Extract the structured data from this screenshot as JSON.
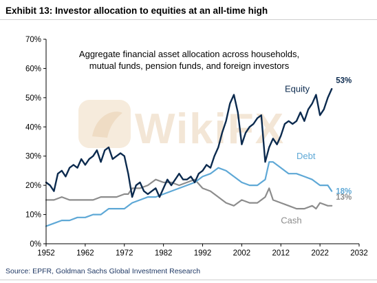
{
  "header": {
    "title": "Exhibit 13: Investor allocation to equities at an all-time high"
  },
  "footer": {
    "source": "Source: EPFR, Goldman Sachs Global Investment Research"
  },
  "watermark": {
    "text": "WikiFX"
  },
  "chart_data": {
    "type": "line",
    "title": "",
    "subtitle_lines": [
      "Aggregate financial asset allocation across households,",
      "mutual funds, pension funds, and foreign investors"
    ],
    "xlabel": "",
    "ylabel": "",
    "xlim": [
      1952,
      2032
    ],
    "ylim": [
      0,
      70
    ],
    "x_ticks": [
      "1952",
      "1962",
      "1972",
      "1982",
      "1992",
      "2002",
      "2012",
      "2022",
      "2032"
    ],
    "y_ticks": [
      "0%",
      "10%",
      "20%",
      "30%",
      "40%",
      "50%",
      "60%",
      "70%"
    ],
    "grid": false,
    "colors": {
      "equity": "#0b2a4e",
      "debt": "#5ea8d6",
      "cash": "#8c8c8c",
      "axis": "#000000"
    },
    "series": [
      {
        "name": "Equity",
        "key": "equity",
        "end_label": "53%",
        "points": [
          [
            1952,
            21
          ],
          [
            1953,
            20
          ],
          [
            1954,
            18
          ],
          [
            1955,
            24
          ],
          [
            1956,
            25
          ],
          [
            1957,
            23
          ],
          [
            1958,
            26
          ],
          [
            1959,
            27
          ],
          [
            1960,
            26
          ],
          [
            1961,
            29
          ],
          [
            1962,
            27
          ],
          [
            1963,
            29
          ],
          [
            1964,
            30
          ],
          [
            1965,
            32
          ],
          [
            1966,
            28
          ],
          [
            1967,
            32
          ],
          [
            1968,
            33
          ],
          [
            1969,
            29
          ],
          [
            1970,
            30
          ],
          [
            1971,
            31
          ],
          [
            1972,
            30
          ],
          [
            1973,
            24
          ],
          [
            1974,
            16
          ],
          [
            1975,
            20
          ],
          [
            1976,
            21
          ],
          [
            1977,
            18
          ],
          [
            1978,
            17
          ],
          [
            1979,
            18
          ],
          [
            1980,
            19
          ],
          [
            1981,
            16
          ],
          [
            1982,
            19
          ],
          [
            1983,
            22
          ],
          [
            1984,
            20
          ],
          [
            1985,
            22
          ],
          [
            1986,
            24
          ],
          [
            1987,
            22
          ],
          [
            1988,
            22
          ],
          [
            1989,
            23
          ],
          [
            1990,
            21
          ],
          [
            1991,
            24
          ],
          [
            1992,
            25
          ],
          [
            1993,
            27
          ],
          [
            1994,
            26
          ],
          [
            1995,
            30
          ],
          [
            1996,
            33
          ],
          [
            1997,
            38
          ],
          [
            1998,
            42
          ],
          [
            1999,
            48
          ],
          [
            2000,
            51
          ],
          [
            2001,
            45
          ],
          [
            2002,
            34
          ],
          [
            2003,
            38
          ],
          [
            2004,
            40
          ],
          [
            2005,
            41
          ],
          [
            2006,
            43
          ],
          [
            2007,
            44
          ],
          [
            2008,
            28
          ],
          [
            2009,
            33
          ],
          [
            2010,
            36
          ],
          [
            2011,
            34
          ],
          [
            2012,
            37
          ],
          [
            2013,
            41
          ],
          [
            2014,
            42
          ],
          [
            2015,
            41
          ],
          [
            2016,
            42
          ],
          [
            2017,
            45
          ],
          [
            2018,
            42
          ],
          [
            2019,
            46
          ],
          [
            2020,
            48
          ],
          [
            2021,
            51
          ],
          [
            2022,
            44
          ],
          [
            2023,
            46
          ],
          [
            2024,
            50
          ],
          [
            2025,
            53
          ]
        ]
      },
      {
        "name": "Debt",
        "key": "debt",
        "end_label": "18%",
        "points": [
          [
            1952,
            6
          ],
          [
            1954,
            7
          ],
          [
            1956,
            8
          ],
          [
            1958,
            8
          ],
          [
            1960,
            9
          ],
          [
            1962,
            9
          ],
          [
            1964,
            10
          ],
          [
            1966,
            10
          ],
          [
            1968,
            12
          ],
          [
            1970,
            12
          ],
          [
            1972,
            12
          ],
          [
            1974,
            14
          ],
          [
            1976,
            15
          ],
          [
            1978,
            16
          ],
          [
            1980,
            16
          ],
          [
            1982,
            17
          ],
          [
            1984,
            18
          ],
          [
            1986,
            19
          ],
          [
            1988,
            20
          ],
          [
            1990,
            21
          ],
          [
            1992,
            23
          ],
          [
            1994,
            24
          ],
          [
            1996,
            26
          ],
          [
            1998,
            25
          ],
          [
            2000,
            23
          ],
          [
            2002,
            21
          ],
          [
            2004,
            20
          ],
          [
            2006,
            20
          ],
          [
            2008,
            22
          ],
          [
            2009,
            28
          ],
          [
            2010,
            28
          ],
          [
            2012,
            26
          ],
          [
            2014,
            24
          ],
          [
            2016,
            24
          ],
          [
            2018,
            23
          ],
          [
            2020,
            22
          ],
          [
            2022,
            20
          ],
          [
            2024,
            20
          ],
          [
            2025,
            18
          ]
        ]
      },
      {
        "name": "Cash",
        "key": "cash",
        "end_label": "13%",
        "points": [
          [
            1952,
            15
          ],
          [
            1954,
            15
          ],
          [
            1956,
            16
          ],
          [
            1958,
            15
          ],
          [
            1960,
            15
          ],
          [
            1962,
            15
          ],
          [
            1964,
            15
          ],
          [
            1966,
            16
          ],
          [
            1968,
            16
          ],
          [
            1970,
            16
          ],
          [
            1972,
            17
          ],
          [
            1973,
            17
          ],
          [
            1974,
            19
          ],
          [
            1976,
            19
          ],
          [
            1978,
            20
          ],
          [
            1980,
            22
          ],
          [
            1982,
            21
          ],
          [
            1984,
            21
          ],
          [
            1986,
            20
          ],
          [
            1988,
            21
          ],
          [
            1990,
            22
          ],
          [
            1992,
            19
          ],
          [
            1994,
            18
          ],
          [
            1996,
            16
          ],
          [
            1998,
            14
          ],
          [
            2000,
            13
          ],
          [
            2002,
            15
          ],
          [
            2004,
            14
          ],
          [
            2006,
            14
          ],
          [
            2008,
            16
          ],
          [
            2009,
            19
          ],
          [
            2010,
            15
          ],
          [
            2012,
            14
          ],
          [
            2014,
            13
          ],
          [
            2016,
            12
          ],
          [
            2018,
            12
          ],
          [
            2020,
            13
          ],
          [
            2021,
            12
          ],
          [
            2022,
            14
          ],
          [
            2024,
            13
          ],
          [
            2025,
            13
          ]
        ]
      }
    ]
  }
}
